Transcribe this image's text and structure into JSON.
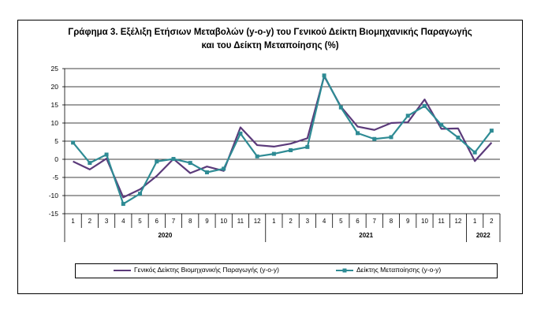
{
  "title_line1": "Γράφημα 3. Εξέλιξη Ετήσιων Μεταβολών (y-o-y) του Γενικού Δείκτη Βιομηχανικής Παραγωγής",
  "title_line2": "και του Δείκτη Μεταποίησης (%)",
  "chart_data": {
    "type": "line",
    "title": "Γράφημα 3. Εξέλιξη Ετήσιων Μεταβολών (y-o-y) του Γενικού Δείκτη Βιομηχανικής Παραγωγής και του Δείκτη Μεταποίησης (%)",
    "xlabel": "",
    "ylabel": "",
    "ylim": [
      -15,
      25
    ],
    "yticks": [
      -15,
      -10,
      -5,
      0,
      5,
      10,
      15,
      20,
      25
    ],
    "grid": true,
    "legend": "bottom",
    "categories": [
      "1",
      "2",
      "3",
      "4",
      "5",
      "6",
      "7",
      "8",
      "9",
      "10",
      "11",
      "12",
      "1",
      "2",
      "3",
      "4",
      "5",
      "6",
      "7",
      "8",
      "9",
      "10",
      "11",
      "12",
      "1",
      "2"
    ],
    "years": [
      {
        "label": "2020",
        "start": 0,
        "end": 11
      },
      {
        "label": "2021",
        "start": 12,
        "end": 23
      },
      {
        "label": "2022",
        "start": 24,
        "end": 25
      }
    ],
    "series": [
      {
        "name": "Γενικός Δείκτης Βιομηχανικής Παραγωγής (y-o-y)",
        "color": "#5b3a7a",
        "marker": "none",
        "values": [
          -0.6,
          -2.8,
          0.2,
          -10.5,
          -8.3,
          -4.6,
          0.1,
          -3.8,
          -2.0,
          -3.2,
          8.8,
          3.9,
          3.5,
          4.3,
          5.8,
          22.9,
          14.5,
          9.0,
          8.1,
          10.0,
          10.2,
          16.5,
          8.4,
          8.5,
          -0.5,
          4.6
        ]
      },
      {
        "name": "Δείκτης Μεταποίησης (y-o-y)",
        "color": "#2e8b94",
        "marker": "square",
        "values": [
          4.6,
          -1.0,
          1.3,
          -12.3,
          -9.5,
          -0.6,
          0.1,
          -1.0,
          -3.6,
          -2.6,
          7.1,
          0.8,
          1.5,
          2.5,
          3.4,
          23.1,
          14.3,
          7.2,
          5.6,
          6.1,
          12.0,
          14.7,
          9.5,
          6.0,
          1.9,
          7.9
        ]
      }
    ]
  }
}
